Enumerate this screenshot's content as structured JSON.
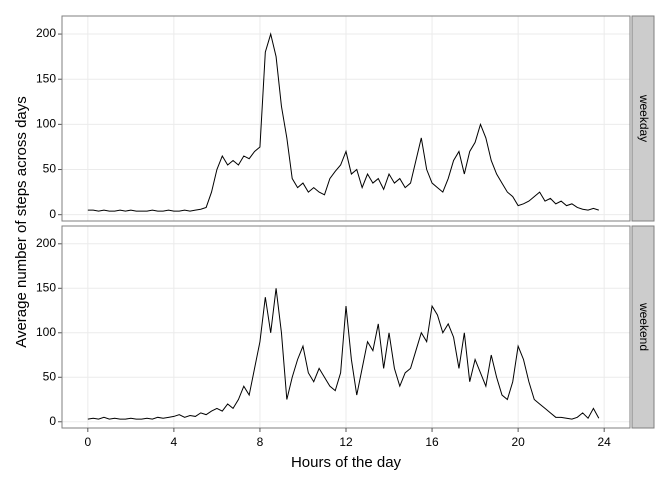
{
  "chart_data": {
    "type": "line",
    "xlabel": "Hours of the day",
    "ylabel": "Average number of steps across days",
    "color": "#000000",
    "grid": true,
    "xlim": [
      -1.2,
      25.2
    ],
    "xticks": [
      0,
      4,
      8,
      12,
      16,
      20,
      24
    ],
    "ylim": [
      -7,
      220
    ],
    "yticks": [
      0,
      50,
      100,
      150,
      200
    ],
    "x": [
      0,
      0.25,
      0.5,
      0.75,
      1,
      1.25,
      1.5,
      1.75,
      2,
      2.25,
      2.5,
      2.75,
      3,
      3.25,
      3.5,
      3.75,
      4,
      4.25,
      4.5,
      4.75,
      5,
      5.25,
      5.5,
      5.75,
      6,
      6.25,
      6.5,
      6.75,
      7,
      7.25,
      7.5,
      7.75,
      8,
      8.25,
      8.5,
      8.75,
      9,
      9.25,
      9.5,
      9.75,
      10,
      10.25,
      10.5,
      10.75,
      11,
      11.25,
      11.5,
      11.75,
      12,
      12.25,
      12.5,
      12.75,
      13,
      13.25,
      13.5,
      13.75,
      14,
      14.25,
      14.5,
      14.75,
      15,
      15.25,
      15.5,
      15.75,
      16,
      16.25,
      16.5,
      16.75,
      17,
      17.25,
      17.5,
      17.75,
      18,
      18.25,
      18.5,
      18.75,
      19,
      19.25,
      19.5,
      19.75,
      20,
      20.25,
      20.5,
      20.75,
      21,
      21.25,
      21.5,
      21.75,
      22,
      22.25,
      22.5,
      22.75,
      23,
      23.25,
      23.5,
      23.75
    ],
    "panels": [
      {
        "strip": "weekday",
        "values": [
          5,
          5,
          4,
          5,
          4,
          4,
          5,
          4,
          5,
          4,
          4,
          4,
          5,
          4,
          4,
          5,
          4,
          4,
          5,
          4,
          5,
          6,
          8,
          25,
          50,
          65,
          55,
          60,
          55,
          65,
          62,
          70,
          75,
          180,
          200,
          175,
          120,
          85,
          40,
          30,
          35,
          25,
          30,
          25,
          22,
          40,
          48,
          55,
          70,
          45,
          50,
          30,
          45,
          35,
          40,
          28,
          45,
          35,
          40,
          30,
          35,
          60,
          85,
          50,
          35,
          30,
          25,
          40,
          60,
          70,
          45,
          70,
          80,
          100,
          85,
          60,
          45,
          35,
          25,
          20,
          10,
          12,
          15,
          20,
          25,
          15,
          18,
          12,
          15,
          10,
          12,
          8,
          6,
          5,
          7,
          5
        ]
      },
      {
        "strip": "weekend",
        "values": [
          3,
          4,
          3,
          5,
          3,
          4,
          3,
          3,
          4,
          3,
          3,
          4,
          3,
          5,
          4,
          5,
          6,
          8,
          5,
          7,
          6,
          10,
          8,
          12,
          15,
          12,
          20,
          15,
          25,
          40,
          30,
          60,
          90,
          140,
          100,
          150,
          100,
          25,
          50,
          70,
          85,
          55,
          45,
          60,
          50,
          40,
          35,
          55,
          130,
          70,
          30,
          60,
          90,
          80,
          110,
          60,
          100,
          60,
          40,
          55,
          60,
          80,
          100,
          90,
          130,
          120,
          100,
          110,
          95,
          60,
          100,
          45,
          70,
          55,
          40,
          75,
          50,
          30,
          25,
          45,
          85,
          70,
          45,
          25,
          20,
          15,
          10,
          5,
          5,
          4,
          3,
          5,
          10,
          4,
          15,
          4
        ]
      }
    ]
  }
}
